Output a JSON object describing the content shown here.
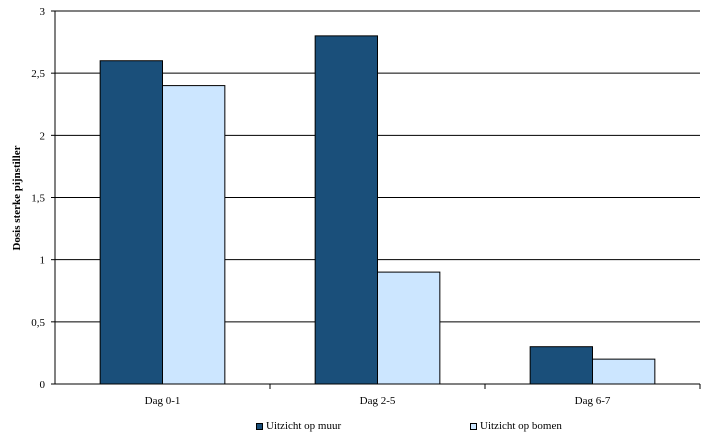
{
  "chart_data": {
    "type": "bar",
    "categories": [
      "Dag 0-1",
      "Dag 2-5",
      "Dag 6-7"
    ],
    "series": [
      {
        "name": "Uitzicht op muur",
        "values": [
          2.6,
          2.8,
          0.3
        ],
        "color": "#1a4f7a"
      },
      {
        "name": "Uitzicht op bomen",
        "values": [
          2.4,
          0.9,
          0.2
        ],
        "color": "#cce6ff"
      }
    ],
    "ylabel": "Dosis sterke pijnstiller",
    "xlabel": "",
    "ylim": [
      0,
      3
    ],
    "yticks": [
      0,
      0.5,
      1,
      1.5,
      2,
      2.5,
      3
    ],
    "ytick_labels": [
      "0",
      "0,5",
      "1",
      "1,5",
      "2",
      "2,5",
      "3"
    ],
    "grid": true,
    "legend": "bottom"
  }
}
